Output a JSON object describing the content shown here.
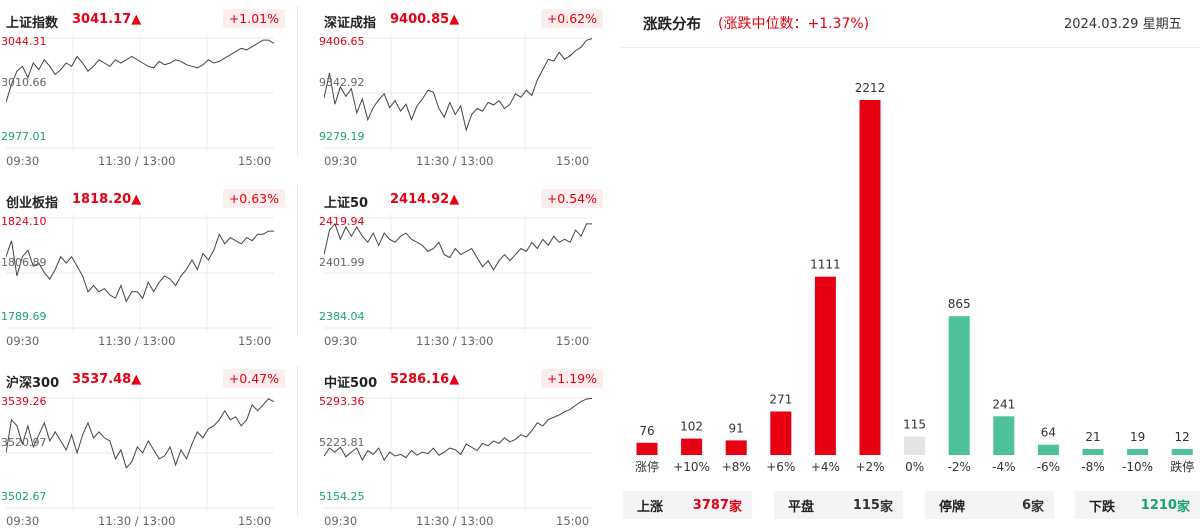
{
  "indices": [
    {
      "name": "上证指数",
      "value": "3041.17▲",
      "change": "+1.01%",
      "y_high": "3044.31",
      "y_mid": "3010.66",
      "y_low": "2977.01",
      "x_start": "09:30",
      "x_mid": "11:30 / 13:00",
      "x_end": "15:00",
      "series": [
        3005,
        3016,
        3024,
        3027,
        3020,
        3029,
        3025,
        3031,
        3027,
        3022,
        3025,
        3029,
        3027,
        3033,
        3029,
        3024,
        3027,
        3031,
        3029,
        3027,
        3031,
        3029,
        3031,
        3033,
        3031,
        3029,
        3027,
        3026,
        3030,
        3028,
        3029,
        3031,
        3030,
        3028,
        3027,
        3026,
        3028,
        3031,
        3029,
        3030,
        3032,
        3034,
        3036,
        3038,
        3037,
        3039,
        3041,
        3043,
        3043,
        3041
      ]
    },
    {
      "name": "深证成指",
      "value": "9400.85▲",
      "change": "+0.62%",
      "y_high": "9406.65",
      "y_mid": "9342.92",
      "y_low": "9279.19",
      "x_start": "09:30",
      "x_mid": "11:30 / 13:00",
      "x_end": "15:00",
      "series": [
        9337,
        9366,
        9330,
        9350,
        9339,
        9348,
        9320,
        9336,
        9312,
        9326,
        9335,
        9342,
        9326,
        9334,
        9322,
        9330,
        9312,
        9328,
        9336,
        9346,
        9344,
        9325,
        9315,
        9332,
        9318,
        9328,
        9300,
        9318,
        9325,
        9322,
        9332,
        9329,
        9334,
        9325,
        9330,
        9342,
        9338,
        9346,
        9340,
        9358,
        9370,
        9382,
        9380,
        9390,
        9382,
        9386,
        9392,
        9396,
        9404,
        9406
      ]
    },
    {
      "name": "创业板指",
      "value": "1818.20▲",
      "change": "+0.63%",
      "y_high": "1824.10",
      "y_mid": "1806.89",
      "y_low": "1789.69",
      "x_start": "09:30",
      "x_mid": "11:30 / 13:00",
      "x_end": "15:00",
      "series": [
        1812,
        1817,
        1806,
        1812,
        1814,
        1809,
        1810,
        1807,
        1805,
        1808,
        1812,
        1810,
        1812,
        1809,
        1806,
        1801,
        1803,
        1801,
        1802,
        1800,
        1799,
        1803,
        1798,
        1801,
        1801,
        1799,
        1804,
        1801,
        1804,
        1806,
        1805,
        1803,
        1806,
        1808,
        1811,
        1808,
        1813,
        1811,
        1814,
        1819,
        1816,
        1818,
        1817,
        1816,
        1818,
        1817,
        1819,
        1819,
        1820,
        1820
      ]
    },
    {
      "name": "上证50",
      "value": "2414.92▲",
      "change": "+0.54%",
      "y_high": "2419.94",
      "y_mid": "2401.99",
      "y_low": "2384.04",
      "x_start": "09:30",
      "x_mid": "11:30 / 13:00",
      "x_end": "15:00",
      "series": [
        2408,
        2416,
        2418,
        2413,
        2417,
        2414,
        2417,
        2414,
        2412,
        2415,
        2411,
        2415,
        2413,
        2412,
        2414,
        2415,
        2413,
        2412,
        2411,
        2409,
        2410,
        2412,
        2408,
        2407,
        2410,
        2408,
        2409,
        2410,
        2407,
        2404,
        2406,
        2403,
        2406,
        2408,
        2406,
        2408,
        2410,
        2409,
        2412,
        2410,
        2413,
        2411,
        2414,
        2412,
        2413,
        2412,
        2416,
        2414,
        2418,
        2418
      ]
    },
    {
      "name": "沪深300",
      "value": "3537.48▲",
      "change": "+0.47%",
      "y_high": "3539.26",
      "y_mid": "3520.97",
      "y_low": "3502.67",
      "x_start": "09:30",
      "x_mid": "11:30 / 13:00",
      "x_end": "15:00",
      "series": [
        3521,
        3532,
        3530,
        3524,
        3530,
        3523,
        3527,
        3531,
        3525,
        3528,
        3525,
        3522,
        3527,
        3521,
        3527,
        3531,
        3526,
        3528,
        3526,
        3525,
        3519,
        3522,
        3516,
        3518,
        3523,
        3521,
        3525,
        3522,
        3519,
        3520,
        3523,
        3517,
        3522,
        3519,
        3524,
        3528,
        3526,
        3529,
        3530,
        3532,
        3535,
        3532,
        3533,
        3530,
        3532,
        3537,
        3535,
        3537,
        3539,
        3538
      ]
    },
    {
      "name": "中证500",
      "value": "5286.16▲",
      "change": "+1.19%",
      "y_high": "5293.36",
      "y_mid": "5223.81",
      "y_low": "5154.25",
      "x_start": "09:30",
      "x_mid": "11:30 / 13:00",
      "x_end": "15:00",
      "series": [
        5220,
        5230,
        5225,
        5231,
        5219,
        5225,
        5230,
        5215,
        5227,
        5222,
        5230,
        5215,
        5225,
        5220,
        5222,
        5218,
        5227,
        5221,
        5225,
        5223,
        5230,
        5221,
        5225,
        5230,
        5228,
        5222,
        5235,
        5231,
        5227,
        5236,
        5233,
        5239,
        5236,
        5243,
        5238,
        5241,
        5247,
        5244,
        5252,
        5262,
        5258,
        5266,
        5269,
        5272,
        5276,
        5279,
        5284,
        5289,
        5292,
        5293
      ]
    }
  ],
  "distribution": {
    "title": "涨跌分布",
    "subtitle": "(涨跌中位数：+1.37%)",
    "date": "2024.03.29 星期五",
    "summary": [
      {
        "label": "上涨",
        "value": "3787",
        "unit": "家",
        "color": "#e60012"
      },
      {
        "label": "平盘",
        "value": "115",
        "unit": "家",
        "color": "#333333"
      },
      {
        "label": "停牌",
        "value": "6",
        "unit": "家",
        "color": "#333333"
      },
      {
        "label": "下跌",
        "value": "1210",
        "unit": "家",
        "color": "#1aa36d"
      }
    ]
  },
  "chart_data": {
    "type": "bar",
    "categories": [
      "涨停",
      "+10%",
      "+8%",
      "+6%",
      "+4%",
      "+2%",
      "0%",
      "-2%",
      "-4%",
      "-6%",
      "-8%",
      "-10%",
      "跌停"
    ],
    "values": [
      76,
      102,
      91,
      271,
      1111,
      2212,
      115,
      865,
      241,
      64,
      21,
      19,
      12
    ],
    "colors": [
      "#e60012",
      "#e60012",
      "#e60012",
      "#e60012",
      "#e60012",
      "#e60012",
      "#e4e4e4",
      "#4dc19b",
      "#4dc19b",
      "#4dc19b",
      "#4dc19b",
      "#4dc19b",
      "#4dc19b"
    ],
    "ylim": [
      0,
      2212
    ]
  }
}
